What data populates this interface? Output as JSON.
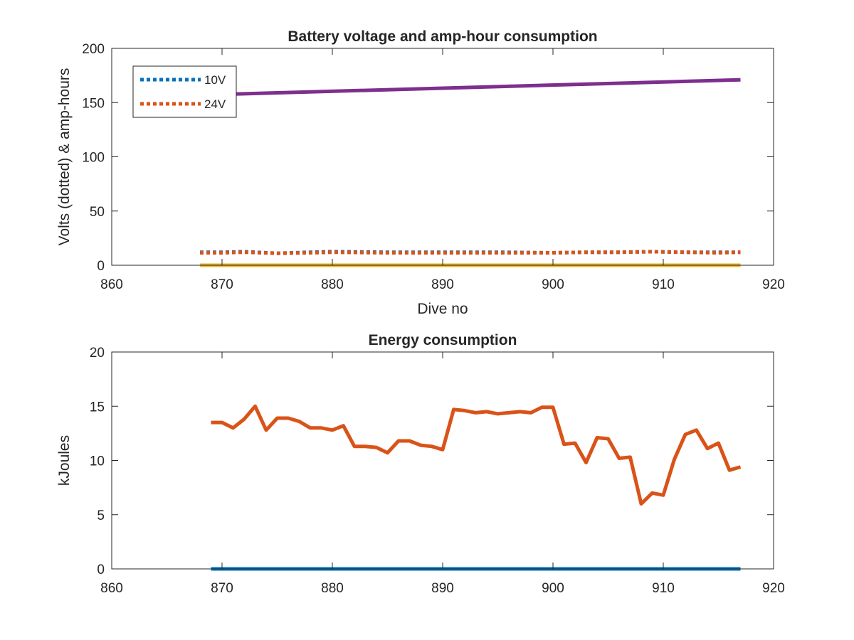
{
  "chart_data": [
    {
      "type": "line",
      "title": "Battery voltage and amp-hour consumption",
      "xlabel": "Dive no",
      "ylabel": "Volts (dotted) & amp-hours",
      "xlim": [
        860,
        920
      ],
      "ylim": [
        0,
        200
      ],
      "xticks": [
        860,
        870,
        880,
        890,
        900,
        910,
        920
      ],
      "yticks": [
        0,
        50,
        100,
        150,
        200
      ],
      "legend": {
        "placement": "top-left",
        "entries": [
          "10V",
          "24V"
        ]
      },
      "grid": false,
      "series": [
        {
          "name": "10V",
          "style": "dotted",
          "color": "#0072BD",
          "x": [
            868,
            870,
            872,
            875,
            878,
            880,
            885,
            890,
            895,
            900,
            903,
            906,
            909,
            912,
            915,
            917
          ],
          "y": [
            12,
            12,
            12.5,
            11,
            12,
            12.5,
            12,
            12,
            12,
            11.5,
            12,
            12,
            12.5,
            12,
            12,
            12
          ]
        },
        {
          "name": "24V",
          "style": "dotted",
          "color": "#D95319",
          "x": [
            868,
            870,
            872,
            875,
            878,
            880,
            885,
            890,
            895,
            900,
            903,
            906,
            909,
            912,
            915,
            917
          ],
          "y": [
            11.5,
            11.5,
            12,
            11,
            11.5,
            12,
            11.5,
            11.5,
            11.5,
            11.5,
            12,
            12,
            12.5,
            12,
            11.5,
            12
          ]
        },
        {
          "style": "solid",
          "color": "#7E2F8E",
          "x": [
            868,
            917
          ],
          "y": [
            157,
            171
          ]
        },
        {
          "style": "solid",
          "color": "#EDB120",
          "x": [
            868,
            917
          ],
          "y": [
            0,
            0
          ]
        }
      ]
    },
    {
      "type": "line",
      "title": "Energy consumption",
      "xlabel": "",
      "ylabel": "kJoules",
      "xlim": [
        860,
        920
      ],
      "ylim": [
        0,
        20
      ],
      "xticks": [
        860,
        870,
        880,
        890,
        900,
        910,
        920
      ],
      "yticks": [
        0,
        5,
        10,
        15,
        20
      ],
      "grid": false,
      "series": [
        {
          "style": "solid",
          "color": "#D95319",
          "x": [
            869,
            870,
            871,
            872,
            873,
            874,
            875,
            876,
            877,
            878,
            879,
            880,
            881,
            882,
            883,
            884,
            885,
            886,
            887,
            888,
            889,
            890,
            891,
            892,
            893,
            894,
            895,
            896,
            897,
            898,
            899,
            900,
            901,
            902,
            903,
            904,
            905,
            906,
            907,
            908,
            909,
            910,
            911,
            912,
            913,
            914,
            915,
            916,
            917
          ],
          "y": [
            13.5,
            13.5,
            13.0,
            13.8,
            15.0,
            12.8,
            13.9,
            13.9,
            13.6,
            13.0,
            13.0,
            12.8,
            13.2,
            11.3,
            11.3,
            11.2,
            10.7,
            11.8,
            11.8,
            11.4,
            11.3,
            11.0,
            14.7,
            14.6,
            14.4,
            14.5,
            14.3,
            14.4,
            14.5,
            14.4,
            14.9,
            14.9,
            11.5,
            11.6,
            9.8,
            12.1,
            12.0,
            10.2,
            10.3,
            6.0,
            7.0,
            6.8,
            10.1,
            12.4,
            12.8,
            11.1,
            11.6,
            9.1,
            9.4
          ]
        },
        {
          "style": "solid",
          "color": "#0072BD",
          "x": [
            869,
            917
          ],
          "y": [
            0,
            0
          ]
        }
      ]
    }
  ]
}
